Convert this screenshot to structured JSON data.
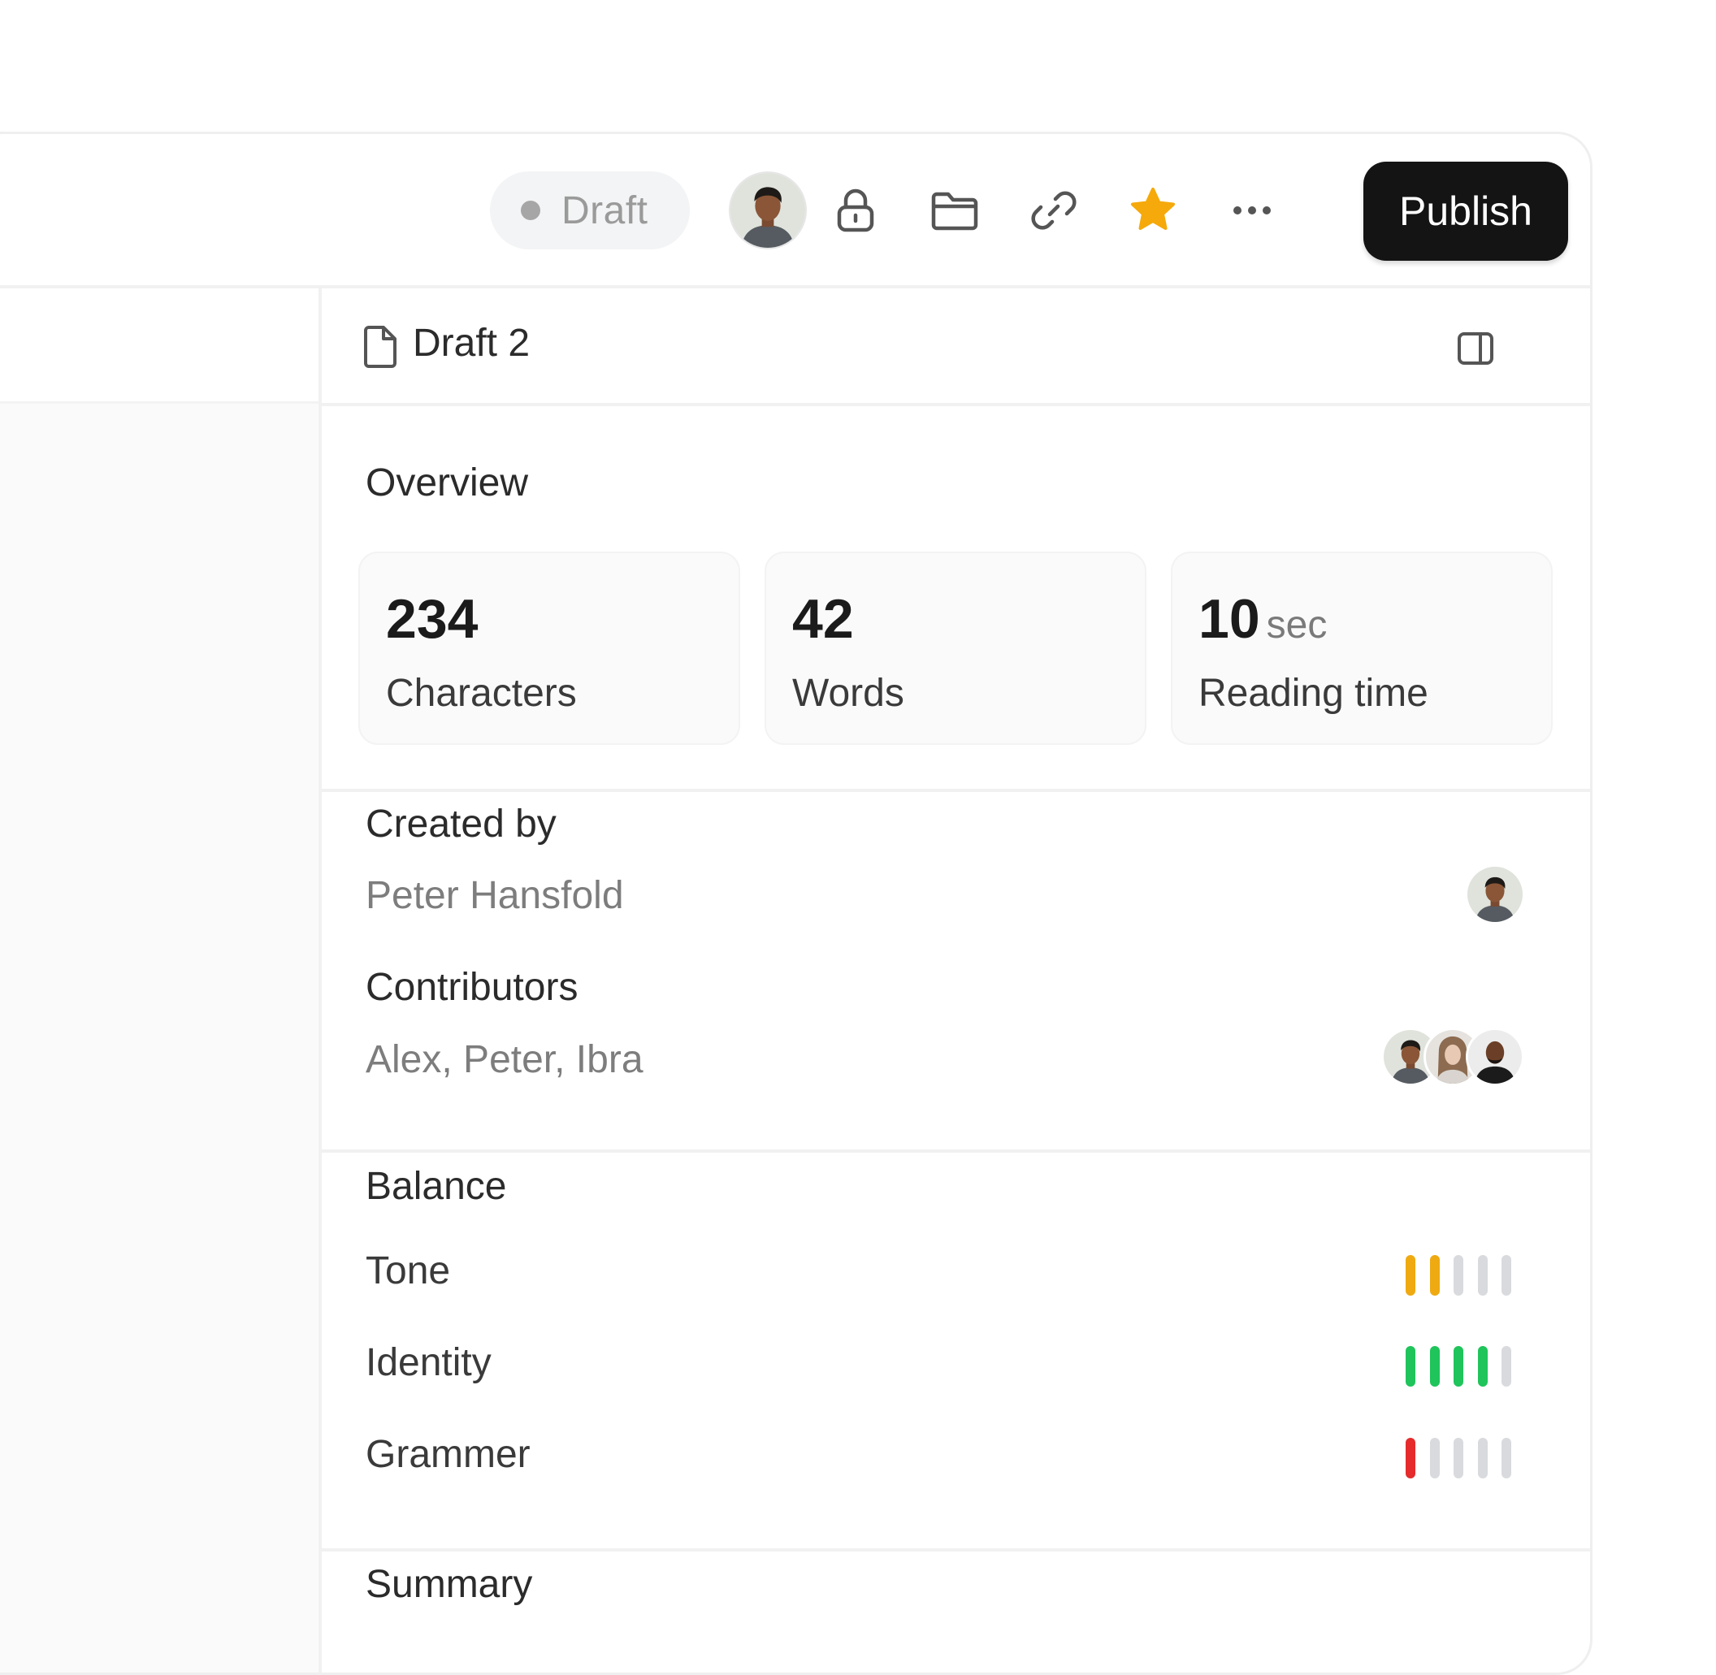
{
  "toolbar": {
    "status_label": "Draft",
    "publish_label": "Publish",
    "icons": [
      "lock-icon",
      "folder-icon",
      "link-icon",
      "star-icon",
      "more-icon"
    ],
    "star_color": "#F5A90A"
  },
  "panel": {
    "title": "Draft 2",
    "overview": {
      "title": "Overview",
      "stats": [
        {
          "value": "234",
          "unit": "",
          "label": "Characters"
        },
        {
          "value": "42",
          "unit": "",
          "label": "Words"
        },
        {
          "value": "10",
          "unit": "sec",
          "label": "Reading time"
        }
      ]
    },
    "created_by": {
      "label": "Created by",
      "value": "Peter Hansfold"
    },
    "contributors": {
      "label": "Contributors",
      "value": "Alex, Peter, Ibra"
    },
    "balance": {
      "title": "Balance",
      "items": [
        {
          "label": "Tone",
          "score": 2,
          "max": 5,
          "color": "#EFAA12"
        },
        {
          "label": "Identity",
          "score": 4,
          "max": 5,
          "color": "#1FC45B"
        },
        {
          "label": "Grammer",
          "score": 1,
          "max": 5,
          "color": "#E52B2B"
        }
      ]
    },
    "summary": {
      "title": "Summary"
    }
  }
}
